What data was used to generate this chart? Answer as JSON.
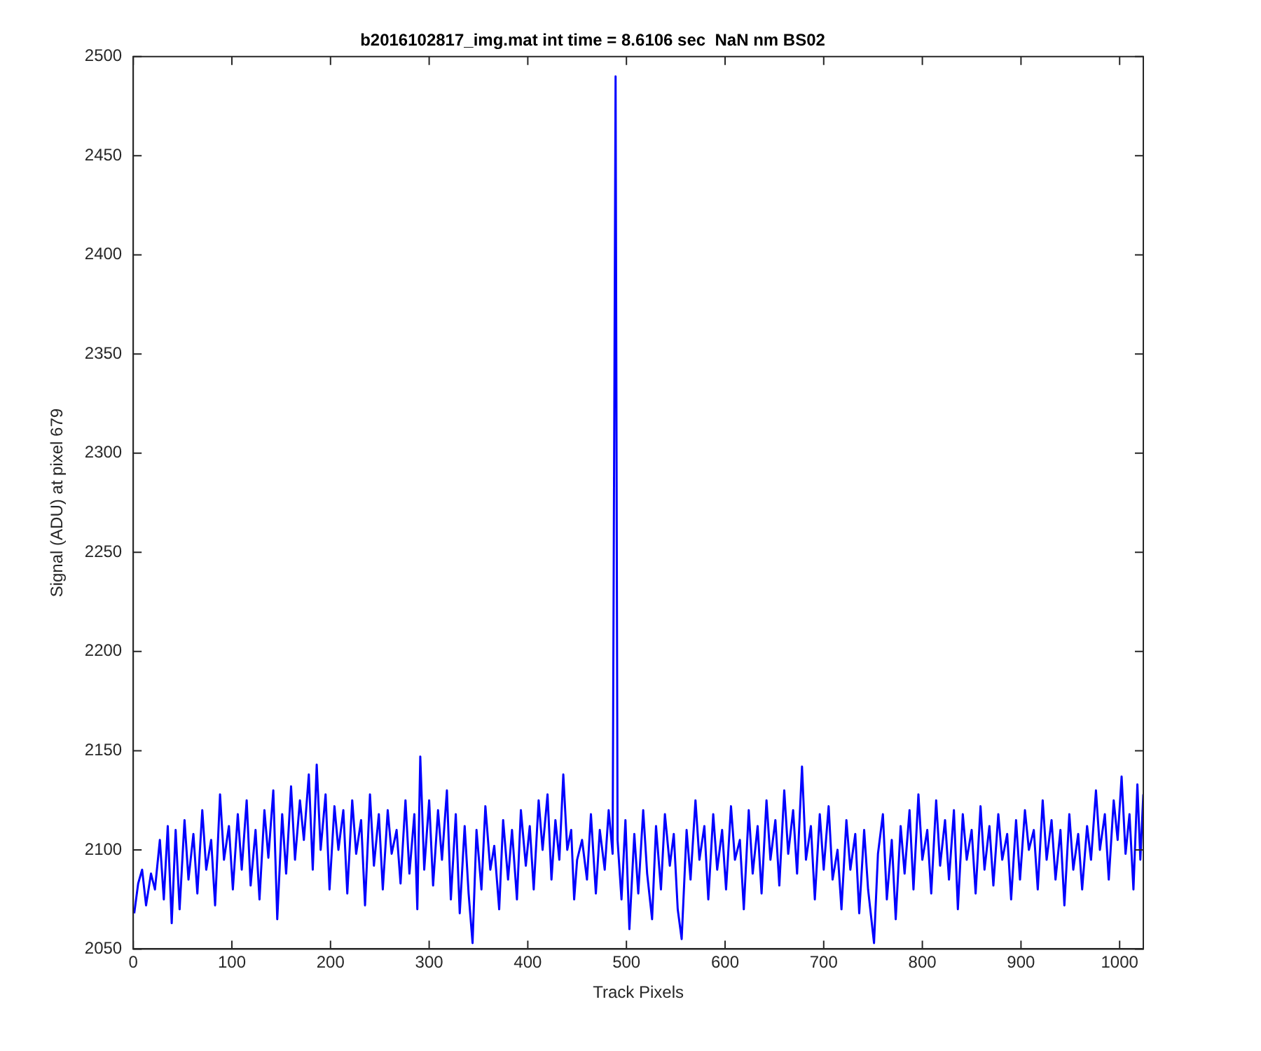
{
  "chart_data": {
    "type": "line",
    "title": "b2016102817_img.mat int time = 8.6106 sec  NaN nm BS02",
    "xlabel": "Track Pixels",
    "ylabel": "Signal (ADU) at pixel 679",
    "xlim": [
      0,
      1024
    ],
    "xticks": [
      0,
      100,
      200,
      300,
      400,
      500,
      600,
      700,
      800,
      900,
      1000
    ],
    "ylim": [
      2050,
      2500
    ],
    "yticks": [
      2050,
      2100,
      2150,
      2200,
      2250,
      2300,
      2350,
      2400,
      2450,
      2500
    ],
    "grid": false,
    "legend": false,
    "marker": "none",
    "line_style": "solid",
    "x": [
      1,
      5,
      9,
      13,
      18,
      22,
      27,
      31,
      35,
      39,
      43,
      47,
      52,
      56,
      61,
      65,
      70,
      74,
      79,
      83,
      88,
      92,
      97,
      101,
      106,
      110,
      115,
      119,
      124,
      128,
      133,
      137,
      142,
      146,
      151,
      155,
      160,
      164,
      169,
      173,
      178,
      182,
      186,
      190,
      195,
      199,
      204,
      208,
      213,
      217,
      222,
      226,
      231,
      235,
      240,
      244,
      249,
      253,
      258,
      262,
      267,
      271,
      276,
      280,
      285,
      288,
      291,
      295,
      300,
      304,
      309,
      313,
      318,
      322,
      327,
      331,
      336,
      340,
      344,
      348,
      353,
      357,
      362,
      366,
      371,
      375,
      380,
      384,
      389,
      393,
      398,
      402,
      406,
      411,
      415,
      420,
      424,
      428,
      432,
      436,
      440,
      444,
      447,
      450,
      455,
      460,
      464,
      469,
      473,
      478,
      482,
      486,
      489,
      491,
      495,
      499,
      503,
      508,
      512,
      517,
      521,
      526,
      530,
      535,
      539,
      544,
      548,
      552,
      556,
      561,
      565,
      570,
      574,
      579,
      583,
      588,
      592,
      597,
      601,
      606,
      610,
      615,
      619,
      624,
      628,
      633,
      637,
      642,
      646,
      651,
      655,
      660,
      664,
      669,
      673,
      678,
      682,
      687,
      691,
      696,
      700,
      705,
      709,
      714,
      718,
      723,
      727,
      732,
      736,
      741,
      745,
      751,
      755,
      760,
      764,
      769,
      773,
      778,
      782,
      787,
      791,
      796,
      800,
      805,
      809,
      814,
      818,
      823,
      827,
      832,
      836,
      841,
      845,
      850,
      854,
      859,
      863,
      868,
      872,
      877,
      881,
      886,
      890,
      895,
      899,
      904,
      908,
      913,
      917,
      922,
      926,
      931,
      935,
      940,
      944,
      949,
      953,
      958,
      962,
      967,
      971,
      976,
      980,
      985,
      989,
      994,
      998,
      1002,
      1006,
      1010,
      1014,
      1018,
      1021,
      1024
    ],
    "series": [
      {
        "color": "#0000ff",
        "values": [
          2068,
          2083,
          2090,
          2072,
          2088,
          2080,
          2105,
          2075,
          2112,
          2063,
          2110,
          2070,
          2115,
          2085,
          2108,
          2078,
          2120,
          2090,
          2105,
          2072,
          2128,
          2095,
          2112,
          2080,
          2118,
          2090,
          2125,
          2082,
          2110,
          2075,
          2120,
          2096,
          2130,
          2065,
          2118,
          2088,
          2132,
          2095,
          2125,
          2105,
          2138,
          2090,
          2143,
          2100,
          2128,
          2080,
          2122,
          2100,
          2120,
          2078,
          2125,
          2098,
          2115,
          2072,
          2128,
          2092,
          2118,
          2080,
          2120,
          2098,
          2110,
          2083,
          2125,
          2088,
          2118,
          2070,
          2147,
          2090,
          2125,
          2082,
          2120,
          2095,
          2130,
          2075,
          2118,
          2068,
          2112,
          2078,
          2053,
          2110,
          2080,
          2122,
          2090,
          2102,
          2070,
          2115,
          2085,
          2110,
          2075,
          2120,
          2092,
          2112,
          2080,
          2125,
          2100,
          2128,
          2085,
          2115,
          2095,
          2138,
          2100,
          2110,
          2075,
          2095,
          2105,
          2085,
          2118,
          2078,
          2110,
          2090,
          2120,
          2098,
          2490,
          2105,
          2075,
          2115,
          2060,
          2108,
          2078,
          2120,
          2088,
          2065,
          2112,
          2080,
          2118,
          2092,
          2108,
          2070,
          2055,
          2110,
          2085,
          2125,
          2095,
          2112,
          2075,
          2118,
          2090,
          2110,
          2080,
          2122,
          2095,
          2105,
          2070,
          2120,
          2088,
          2112,
          2078,
          2125,
          2095,
          2115,
          2082,
          2130,
          2098,
          2120,
          2088,
          2142,
          2095,
          2112,
          2075,
          2118,
          2090,
          2122,
          2085,
          2100,
          2070,
          2115,
          2090,
          2108,
          2068,
          2110,
          2080,
          2053,
          2098,
          2118,
          2075,
          2105,
          2065,
          2112,
          2088,
          2120,
          2080,
          2128,
          2095,
          2110,
          2078,
          2125,
          2092,
          2115,
          2085,
          2120,
          2070,
          2118,
          2095,
          2110,
          2078,
          2122,
          2090,
          2112,
          2082,
          2118,
          2095,
          2108,
          2075,
          2115,
          2085,
          2120,
          2100,
          2110,
          2080,
          2125,
          2095,
          2115,
          2085,
          2110,
          2072,
          2118,
          2090,
          2108,
          2080,
          2112,
          2095,
          2130,
          2100,
          2118,
          2085,
          2125,
          2105,
          2137,
          2098,
          2118,
          2080,
          2133,
          2095,
          2128
        ]
      }
    ]
  }
}
